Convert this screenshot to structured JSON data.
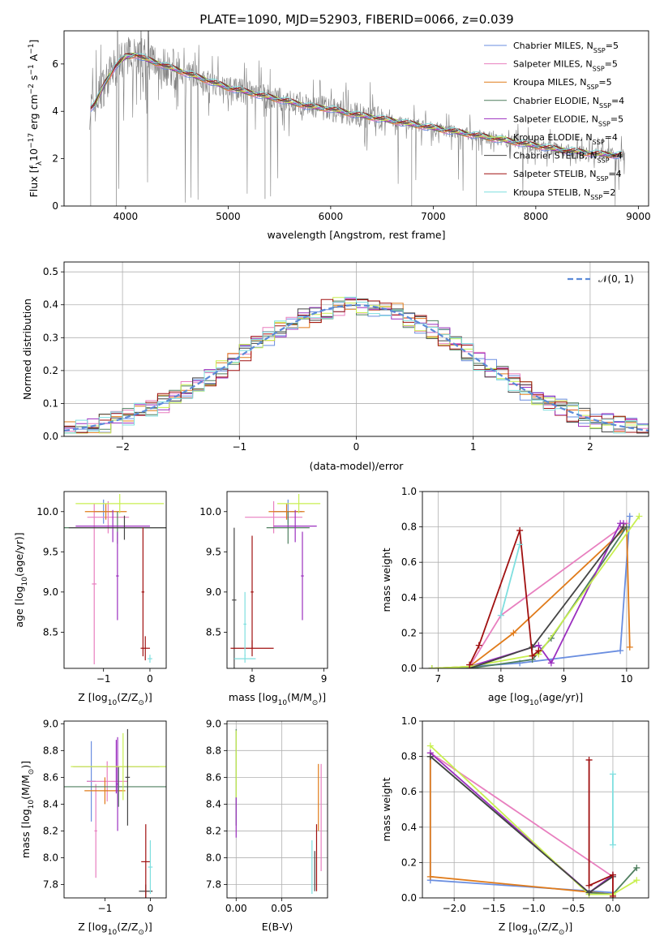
{
  "figure_title": "PLATE=1090, MJD=52903, FIBERID=0066, z=0.039",
  "colors": {
    "Chabrier MILES": "#6a8ee0",
    "Salpeter MILES": "#e87fbf",
    "Kroupa MILES": "#e07b1a",
    "Chabrier ELODIE": "#4f7f5f",
    "Salpeter ELODIE": "#9b2fbf",
    "Kroupa ELODIE": "#c8ef50",
    "Chabrier STELIB": "#444444",
    "Salpeter STELIB": "#a01010",
    "Kroupa STELIB": "#7fdfdf",
    "data": "#808080",
    "gaussian": "#5b8ad8"
  },
  "chart_data": [
    {
      "id": "spectrum",
      "type": "line",
      "xlabel": "wavelength [Angstrom, rest frame]",
      "ylabel_main": "Flux [f",
      "ylabel_sub": "λ",
      "ylabel_rest": "10",
      "ylabel_exp1": "−17",
      "ylabel_mid": " erg cm",
      "ylabel_exp2": "−2",
      "ylabel_s": " s",
      "ylabel_exp3": "−1",
      "ylabel_end": " A",
      "ylabel_exp4": "−1",
      "ylabel_close": "]",
      "xlim": [
        3400,
        9100
      ],
      "ylim": [
        0,
        7.4
      ],
      "xticks": [
        4000,
        5000,
        6000,
        7000,
        8000,
        9000
      ],
      "yticks": [
        0,
        2,
        4,
        6
      ],
      "continuum": {
        "x": [
          3650,
          3700,
          3800,
          3900,
          4000,
          4100,
          4200,
          4400,
          4600,
          4800,
          5000,
          5200,
          5400,
          5600,
          5800,
          6000,
          6200,
          6400,
          6600,
          6800,
          7000,
          7200,
          7400,
          7600,
          7800,
          8000,
          8200,
          8400,
          8600,
          8800
        ],
        "y": [
          4.1,
          4.3,
          5.2,
          5.9,
          6.3,
          6.4,
          6.2,
          5.9,
          5.6,
          5.3,
          5.0,
          4.8,
          4.6,
          4.4,
          4.2,
          4.1,
          3.9,
          3.75,
          3.6,
          3.45,
          3.3,
          3.15,
          3.0,
          2.85,
          2.7,
          2.55,
          2.4,
          2.3,
          2.2,
          2.15
        ]
      },
      "legend": [
        {
          "label": "Chabrier MILES, N",
          "sub": "SSP",
          "value": "=5"
        },
        {
          "label": "Salpeter MILES, N",
          "sub": "SSP",
          "value": "=5"
        },
        {
          "label": "Kroupa MILES, N",
          "sub": "SSP",
          "value": "=5"
        },
        {
          "label": "Chabrier ELODIE, N",
          "sub": "SSP",
          "value": "=4"
        },
        {
          "label": "Salpeter ELODIE, N",
          "sub": "SSP",
          "value": "=5"
        },
        {
          "label": "Kroupa ELODIE, N",
          "sub": "SSP",
          "value": "=4"
        },
        {
          "label": "Chabrier STELIB, N",
          "sub": "SSP",
          "value": "=4"
        },
        {
          "label": "Salpeter STELIB, N",
          "sub": "SSP",
          "value": "=4"
        },
        {
          "label": "Kroupa STELIB, N",
          "sub": "SSP",
          "value": "=2"
        }
      ],
      "legend_loc": "upper right"
    },
    {
      "id": "residuals",
      "type": "histogram",
      "xlabel": "(data-model)/error",
      "ylabel": "Normed distribution",
      "xlim": [
        -2.5,
        2.5
      ],
      "ylim": [
        0,
        0.53
      ],
      "xticks": [
        -2,
        -1,
        0,
        1,
        2
      ],
      "yticks": [
        0,
        0.1,
        0.2,
        0.3,
        0.4,
        0.5
      ],
      "grid": true,
      "bin_width": 0.1,
      "gaussian_label": "𝒩(0, 1)",
      "legend_loc": "upper right"
    },
    {
      "id": "age-vs-Z",
      "type": "errorbar",
      "xlabel_main": "Z [log",
      "xlabel_sub": "10",
      "xlabel_end": "(Z/Z",
      "xlabel_sun": "⊙",
      "xlabel_close": ")]",
      "ylabel_main": "age  [log",
      "ylabel_sub": "10",
      "ylabel_end": "(age/yr)]",
      "xlim": [
        -1.85,
        0.35
      ],
      "ylim": [
        8.05,
        10.25
      ],
      "xticks": [
        -1,
        0
      ],
      "yticks": [
        8.5,
        9.0,
        9.5,
        10.0
      ],
      "points": [
        {
          "model": "Chabrier MILES",
          "x": -1.0,
          "xerr": 0.2,
          "y": 10.0,
          "yerr": 0.15
        },
        {
          "model": "Salpeter MILES",
          "x": -0.9,
          "xerr": 0.45,
          "y": 9.93,
          "yerr": 0.2
        },
        {
          "model": "Salpeter MILES",
          "x": -1.2,
          "xerr": 0.05,
          "y": 9.1,
          "yerr": 1.0
        },
        {
          "model": "Kroupa MILES",
          "x": -0.95,
          "xerr": 0.45,
          "y": 10.0,
          "yerr": 0.1
        },
        {
          "model": "Chabrier ELODIE",
          "x": -0.7,
          "xerr": 1.2,
          "y": 9.8,
          "yerr": 0.2
        },
        {
          "model": "Salpeter ELODIE",
          "x": -0.8,
          "xerr": 0.8,
          "y": 9.82,
          "yerr": 0.2
        },
        {
          "model": "Salpeter ELODIE",
          "x": -0.7,
          "xerr": 0.03,
          "y": 9.2,
          "yerr": 0.55
        },
        {
          "model": "Kroupa ELODIE",
          "x": -0.65,
          "xerr": 0.95,
          "y": 10.1,
          "yerr": 0.12
        },
        {
          "model": "Chabrier STELIB",
          "x": -0.55,
          "xerr": 1.2,
          "y": 9.8,
          "yerr": 0.15
        },
        {
          "model": "Salpeter STELIB",
          "x": -0.1,
          "xerr": 0.1,
          "y": 8.3,
          "yerr": 0.15
        },
        {
          "model": "Salpeter STELIB",
          "x": -0.15,
          "xerr": 0.03,
          "y": 9.0,
          "yerr": 0.8
        },
        {
          "model": "Kroupa STELIB",
          "x": 0.0,
          "xerr": 0.05,
          "y": 8.17,
          "yerr": 0.05
        }
      ]
    },
    {
      "id": "age-vs-mass",
      "type": "errorbar",
      "xlabel_main": "mass [log",
      "xlabel_sub": "10",
      "xlabel_end": "(M/M",
      "xlabel_sun": "⊙",
      "xlabel_close": ")]",
      "xlim": [
        7.65,
        9.05
      ],
      "ylim": [
        8.05,
        10.25
      ],
      "xticks": [
        8,
        9
      ],
      "yticks": [
        8.5,
        9.0,
        9.5,
        10.0
      ],
      "points": [
        {
          "model": "Chabrier MILES",
          "x": 8.5,
          "xerr": 0.2,
          "y": 10.0,
          "yerr": 0.15
        },
        {
          "model": "Salpeter MILES",
          "x": 8.3,
          "xerr": 0.4,
          "y": 9.93,
          "yerr": 0.2
        },
        {
          "model": "Kroupa MILES",
          "x": 8.48,
          "xerr": 0.25,
          "y": 10.0,
          "yerr": 0.1
        },
        {
          "model": "Chabrier ELODIE",
          "x": 8.5,
          "xerr": 0.3,
          "y": 9.8,
          "yerr": 0.2
        },
        {
          "model": "Salpeter ELODIE",
          "x": 8.6,
          "xerr": 0.3,
          "y": 9.82,
          "yerr": 0.2
        },
        {
          "model": "Salpeter ELODIE",
          "x": 8.7,
          "xerr": 0.02,
          "y": 9.2,
          "yerr": 0.55
        },
        {
          "model": "Kroupa ELODIE",
          "x": 8.65,
          "xerr": 0.3,
          "y": 10.1,
          "yerr": 0.12
        },
        {
          "model": "Chabrier STELIB",
          "x": 7.75,
          "xerr": 0.03,
          "y": 8.9,
          "yerr": 0.9
        },
        {
          "model": "Salpeter STELIB",
          "x": 8.0,
          "xerr": 0.3,
          "y": 8.3,
          "yerr": 0.1
        },
        {
          "model": "Salpeter STELIB",
          "x": 8.0,
          "xerr": 0.02,
          "y": 9.0,
          "yerr": 0.7
        },
        {
          "model": "Kroupa STELIB",
          "x": 7.9,
          "xerr": 0.15,
          "y": 8.17,
          "yerr": 0.05
        },
        {
          "model": "Kroupa STELIB",
          "x": 7.9,
          "xerr": 0.02,
          "y": 8.6,
          "yerr": 0.4
        }
      ]
    },
    {
      "id": "massweight-vs-age",
      "type": "line",
      "xlabel_main": "age  [log",
      "xlabel_sub": "10",
      "xlabel_end": "(age/yr)]",
      "ylabel": "mass weight",
      "xlim": [
        6.75,
        10.35
      ],
      "ylim": [
        0,
        1.0
      ],
      "xticks": [
        7,
        8,
        9,
        10
      ],
      "yticks": [
        0,
        0.2,
        0.4,
        0.6,
        0.8,
        1.0
      ],
      "grid": true,
      "series": [
        {
          "model": "Chabrier MILES",
          "x": [
            6.9,
            7.5,
            8.3,
            9.9,
            10.05
          ],
          "y": [
            0.0,
            0.01,
            0.03,
            0.1,
            0.86
          ]
        },
        {
          "model": "Salpeter MILES",
          "x": [
            7.5,
            8.0,
            10.0
          ],
          "y": [
            0.01,
            0.3,
            0.82
          ]
        },
        {
          "model": "Kroupa MILES",
          "x": [
            6.9,
            7.5,
            8.2,
            10.0,
            10.05
          ],
          "y": [
            0.0,
            0.01,
            0.2,
            0.8,
            0.12
          ]
        },
        {
          "model": "Chabrier ELODIE",
          "x": [
            6.9,
            7.5,
            8.5,
            8.8,
            10.0
          ],
          "y": [
            0.0,
            0.0,
            0.05,
            0.17,
            0.8
          ]
        },
        {
          "model": "Salpeter ELODIE",
          "x": [
            7.5,
            8.6,
            8.8,
            9.9,
            9.95
          ],
          "y": [
            0.01,
            0.13,
            0.03,
            0.82,
            0.82
          ]
        },
        {
          "model": "Kroupa ELODIE",
          "x": [
            6.9,
            7.5,
            8.6,
            10.2
          ],
          "y": [
            0.0,
            0.01,
            0.08,
            0.86
          ]
        },
        {
          "model": "Chabrier STELIB",
          "x": [
            7.5,
            8.5,
            9.95
          ],
          "y": [
            0.0,
            0.12,
            0.8
          ]
        },
        {
          "model": "Salpeter STELIB",
          "x": [
            7.5,
            7.65,
            8.3,
            8.5,
            8.6
          ],
          "y": [
            0.02,
            0.13,
            0.78,
            0.07,
            0.1
          ]
        },
        {
          "model": "Kroupa STELIB",
          "x": [
            8.0,
            8.3
          ],
          "y": [
            0.3,
            0.7
          ]
        }
      ]
    },
    {
      "id": "mass-vs-Z",
      "type": "errorbar",
      "xlabel_main": "Z [log",
      "xlabel_sub": "10",
      "xlabel_end": "(Z/Z",
      "xlabel_sun": "⊙",
      "xlabel_close": ")]",
      "ylabel_main": "mass [log",
      "ylabel_sub": "10",
      "ylabel_end": "(M/M",
      "ylabel_sun": "⊙",
      "ylabel_close": ")]",
      "xlim": [
        -1.9,
        0.35
      ],
      "ylim": [
        7.7,
        9.02
      ],
      "xticks": [
        -1,
        0
      ],
      "yticks": [
        7.8,
        8.0,
        8.2,
        8.4,
        8.6,
        8.8,
        9.0
      ],
      "points": [
        {
          "model": "Chabrier MILES",
          "x": -1.3,
          "xerr": 0.1,
          "y": 8.57,
          "yerr": 0.3
        },
        {
          "model": "Salpeter MILES",
          "x": -0.95,
          "xerr": 0.45,
          "y": 8.57,
          "yerr": 0.15
        },
        {
          "model": "Salpeter MILES",
          "x": -1.2,
          "xerr": 0.03,
          "y": 8.2,
          "yerr": 0.35
        },
        {
          "model": "Kroupa MILES",
          "x": -1.0,
          "xerr": 0.45,
          "y": 8.5,
          "yerr": 0.1
        },
        {
          "model": "Chabrier ELODIE",
          "x": -0.7,
          "xerr": 1.2,
          "y": 8.53,
          "yerr": 0.15
        },
        {
          "model": "Salpeter ELODIE",
          "x": -0.75,
          "xerr": 0.95,
          "y": 8.68,
          "yerr": 0.2
        },
        {
          "model": "Salpeter ELODIE",
          "x": -0.72,
          "xerr": 0.02,
          "y": 8.55,
          "yerr": 0.35
        },
        {
          "model": "Kroupa ELODIE",
          "x": -0.6,
          "xerr": 1.15,
          "y": 8.68,
          "yerr": 0.25
        },
        {
          "model": "Chabrier STELIB",
          "x": -0.5,
          "xerr": 0.05,
          "y": 8.6,
          "yerr": 0.36
        },
        {
          "model": "Chabrier STELIB",
          "x": -0.1,
          "xerr": 0.15,
          "y": 7.75,
          "yerr": 0.05
        },
        {
          "model": "Salpeter STELIB",
          "x": -0.1,
          "xerr": 0.1,
          "y": 7.97,
          "yerr": 0.28
        },
        {
          "model": "Kroupa STELIB",
          "x": 0.0,
          "xerr": 0.05,
          "y": 7.93,
          "yerr": 0.2
        }
      ]
    },
    {
      "id": "mass-vs-EBV",
      "type": "errorbar",
      "xlabel": "E(B-V)",
      "xlim": [
        -0.01,
        0.1
      ],
      "ylim": [
        7.7,
        9.02
      ],
      "xticks": [
        0.0,
        0.05
      ],
      "xticklabels": [
        "0.00",
        "0.05"
      ],
      "yticks": [
        7.8,
        8.0,
        8.2,
        8.4,
        8.6,
        8.8,
        9.0
      ],
      "grid": true,
      "points": [
        {
          "model": "Chabrier ELODIE",
          "x": 0.0,
          "xerr": 0.0,
          "y": 8.6,
          "yerr": 0.36
        },
        {
          "model": "Salpeter ELODIE",
          "x": 0.0,
          "xerr": 0.0,
          "y": 8.3,
          "yerr": 0.15
        },
        {
          "model": "Kroupa ELODIE",
          "x": 0.0,
          "xerr": 0.0,
          "y": 8.7,
          "yerr": 0.25
        },
        {
          "model": "Kroupa STELIB",
          "x": 0.083,
          "xerr": 0.0,
          "y": 7.93,
          "yerr": 0.2
        },
        {
          "model": "Chabrier STELIB",
          "x": 0.086,
          "xerr": 0.0,
          "y": 7.9,
          "yerr": 0.15
        },
        {
          "model": "Salpeter STELIB",
          "x": 0.088,
          "xerr": 0.0,
          "y": 8.0,
          "yerr": 0.25
        },
        {
          "model": "Kroupa MILES",
          "x": 0.09,
          "xerr": 0.0,
          "y": 8.45,
          "yerr": 0.25
        },
        {
          "model": "Salpeter MILES",
          "x": 0.093,
          "xerr": 0.0,
          "y": 8.3,
          "yerr": 0.4
        }
      ]
    },
    {
      "id": "massweight-vs-Z",
      "type": "line",
      "xlabel_main": "Z [log",
      "xlabel_sub": "10",
      "xlabel_end": "(Z/Z",
      "xlabel_sun": "⊙",
      "xlabel_close": ")]",
      "ylabel": "mass weight",
      "xlim": [
        -2.4,
        0.45
      ],
      "ylim": [
        0,
        1.0
      ],
      "xticks": [
        -2.0,
        -1.5,
        -1.0,
        -0.5,
        0.0
      ],
      "xticklabels": [
        "−2.0",
        "−1.5",
        "−1.0",
        "−0.5",
        "0.0"
      ],
      "yticks": [
        0,
        0.2,
        0.4,
        0.6,
        0.8,
        1.0
      ],
      "grid": true,
      "series": [
        {
          "model": "Chabrier MILES",
          "x": [
            -2.3,
            -2.3,
            0.0,
            0.0
          ],
          "y": [
            0.8,
            0.1,
            0.03,
            0.0
          ]
        },
        {
          "model": "Salpeter MILES",
          "x": [
            -2.3,
            0.0,
            0.0
          ],
          "y": [
            0.82,
            0.12,
            0.0
          ]
        },
        {
          "model": "Kroupa MILES",
          "x": [
            -2.3,
            -2.3,
            0.0,
            0.0
          ],
          "y": [
            0.8,
            0.12,
            0.02,
            0.0
          ]
        },
        {
          "model": "Chabrier ELODIE",
          "x": [
            -2.3,
            -0.3,
            0.0,
            0.3
          ],
          "y": [
            0.8,
            0.03,
            0.02,
            0.17
          ]
        },
        {
          "model": "Salpeter ELODIE",
          "x": [
            -2.3,
            -0.3,
            0.0
          ],
          "y": [
            0.82,
            0.03,
            0.13
          ]
        },
        {
          "model": "Kroupa ELODIE",
          "x": [
            -2.3,
            -0.3,
            0.0,
            0.3
          ],
          "y": [
            0.86,
            0.02,
            0.02,
            0.1
          ]
        },
        {
          "model": "Chabrier STELIB",
          "x": [
            -2.3,
            -0.3,
            0.0
          ],
          "y": [
            0.8,
            0.03,
            0.12
          ]
        },
        {
          "model": "Salpeter STELIB",
          "x": [
            -0.3,
            -0.3,
            0.0,
            0.0
          ],
          "y": [
            0.78,
            0.07,
            0.13,
            0.01
          ]
        },
        {
          "model": "Kroupa STELIB",
          "x": [
            0.0,
            0.0
          ],
          "y": [
            0.3,
            0.7
          ]
        }
      ]
    }
  ]
}
